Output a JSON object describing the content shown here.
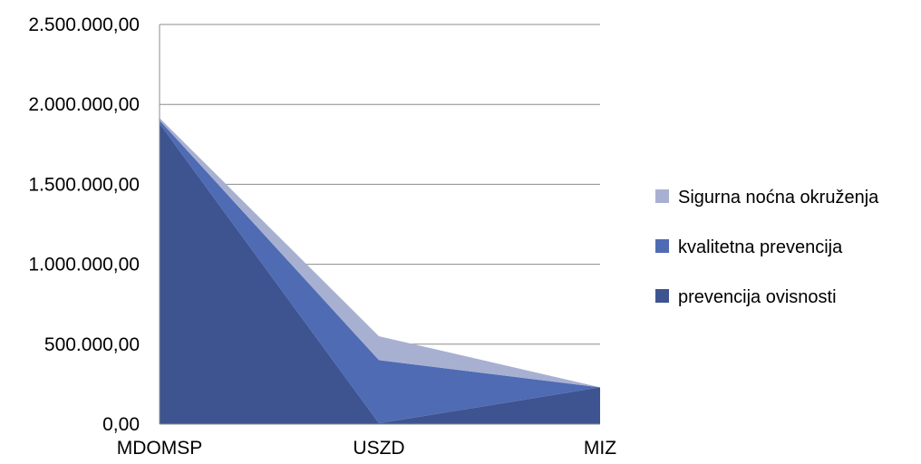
{
  "chart_data": {
    "type": "area",
    "stacked": true,
    "categories": [
      "MDOMSP",
      "USZD",
      "MIZ"
    ],
    "series": [
      {
        "name": "prevencija ovisnosti",
        "values": [
          1880000,
          5000,
          230000
        ],
        "color": "#3d5490"
      },
      {
        "name": "kvalitetna prevencija",
        "values": [
          20000,
          395000,
          0
        ],
        "color": "#4f6bb4"
      },
      {
        "name": "Sigurna noćna okruženja",
        "values": [
          15000,
          150000,
          0
        ],
        "color": "#a8b0d2"
      }
    ],
    "yticks": [
      "0,00",
      "500.000,00",
      "1.000.000,00",
      "1.500.000,00",
      "2.000.000,00",
      "2.500.000,00"
    ],
    "ylim": [
      0,
      2500000
    ],
    "grid": true,
    "legend_position": "right",
    "legend_order": [
      "Sigurna noćna okruženja",
      "kvalitetna prevencija",
      "prevencija ovisnosti"
    ]
  }
}
